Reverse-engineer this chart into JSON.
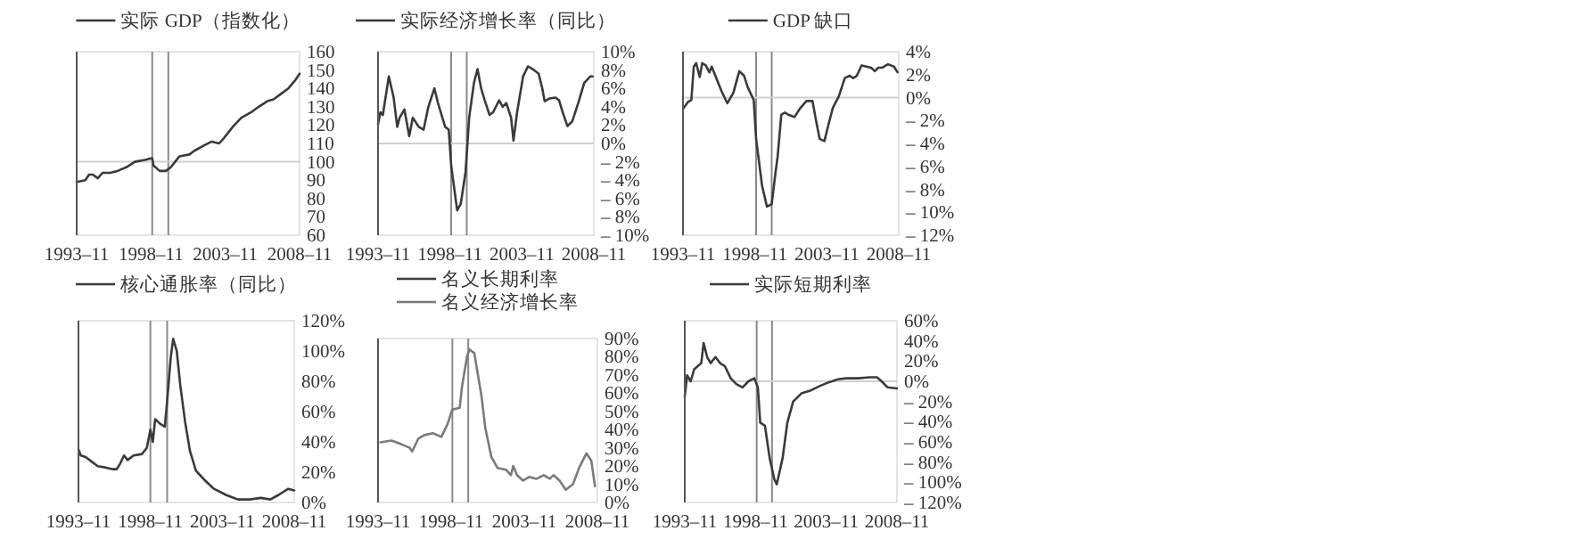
{
  "chart_data": [
    {
      "type": "line",
      "legend": "top",
      "xlim": [
        "1993-11",
        "2008-11"
      ],
      "xticks": [
        {
          "value": "1993-11",
          "label": "1993–11"
        },
        {
          "value": "1998-11",
          "label": "1998–11"
        },
        {
          "value": "2003-11",
          "label": "2003–11"
        },
        {
          "value": "2008-11",
          "label": "2008–11"
        }
      ],
      "ylim": [
        60,
        160
      ],
      "yticks": [
        60,
        70,
        80,
        90,
        100,
        110,
        120,
        130,
        140,
        150,
        160
      ],
      "ref_lines": [
        {
          "axis": "x",
          "value": "1998-12",
          "color": "#8a8a8a"
        },
        {
          "axis": "x",
          "value": "2000-01",
          "color": "#8a8a8a"
        },
        {
          "axis": "y",
          "value": 100,
          "color": "#d0d0d0"
        }
      ],
      "series": [
        {
          "name": "实际 GDP（指数化）",
          "color": "#3a3a3a",
          "x": [
            "1993-11",
            "1994-06",
            "1994-09",
            "1994-12",
            "1995-04",
            "1995-08",
            "1996-02",
            "1996-08",
            "1997-03",
            "1997-10",
            "1998-06",
            "1998-12",
            "1999-01",
            "1999-06",
            "1999-11",
            "2000-03",
            "2000-10",
            "2001-06",
            "2001-10",
            "2002-06",
            "2002-12",
            "2003-06",
            "2003-10",
            "2004-05",
            "2004-12",
            "2005-08",
            "2006-02",
            "2006-09",
            "2007-02",
            "2007-08",
            "2008-02",
            "2008-07",
            "2008-11"
          ],
          "values": [
            89,
            90,
            93,
            93,
            91,
            94,
            94,
            95,
            97,
            100,
            101,
            102,
            98,
            95,
            95,
            97,
            103,
            104,
            106,
            109,
            111,
            110,
            113,
            119,
            124,
            127,
            130,
            133,
            134,
            137,
            140,
            144,
            148
          ]
        }
      ]
    },
    {
      "type": "line",
      "legend": "top",
      "xlim": [
        "1993-11",
        "2008-11"
      ],
      "xticks": [
        {
          "value": "1993-11",
          "label": "1993–11"
        },
        {
          "value": "1998-11",
          "label": "1998–11"
        },
        {
          "value": "2003-11",
          "label": "2003–11"
        },
        {
          "value": "2008-11",
          "label": "2008–11"
        }
      ],
      "ylim": [
        -10,
        10
      ],
      "yticks": [
        {
          "value": -10,
          "label": "– 10%"
        },
        {
          "value": -8,
          "label": "– 8%"
        },
        {
          "value": -6,
          "label": "– 6%"
        },
        {
          "value": -4,
          "label": "– 4%"
        },
        {
          "value": -2,
          "label": "– 2%"
        },
        {
          "value": 0,
          "label": "0%"
        },
        {
          "value": 2,
          "label": "2%"
        },
        {
          "value": 4,
          "label": "4%"
        },
        {
          "value": 6,
          "label": "6%"
        },
        {
          "value": 8,
          "label": "8%"
        },
        {
          "value": 10,
          "label": "10%"
        }
      ],
      "ref_lines": [
        {
          "axis": "x",
          "value": "1998-12",
          "color": "#8a8a8a"
        },
        {
          "axis": "x",
          "value": "2000-01",
          "color": "#8a8a8a"
        },
        {
          "axis": "y",
          "value": 0,
          "color": "#d0d0d0"
        }
      ],
      "series": [
        {
          "name": "实际经济增长率（同比）",
          "color": "#3a3a3a",
          "x": [
            "1993-11",
            "1994-01",
            "1994-03",
            "1994-08",
            "1994-12",
            "1995-03",
            "1995-05",
            "1995-09",
            "1996-01",
            "1996-04",
            "1996-09",
            "1997-01",
            "1997-05",
            "1997-10",
            "1998-01",
            "1998-04",
            "1998-07",
            "1998-10",
            "1998-12",
            "1999-05",
            "1999-08",
            "1999-12",
            "2000-03",
            "2000-07",
            "2000-10",
            "2001-01",
            "2001-04",
            "2001-08",
            "2001-11",
            "2002-04",
            "2002-07",
            "2002-10",
            "2003-02",
            "2003-04",
            "2003-07",
            "2003-12",
            "2004-04",
            "2004-08",
            "2005-01",
            "2005-04",
            "2005-06",
            "2005-10",
            "2006-03",
            "2006-06",
            "2006-09",
            "2007-01",
            "2007-05",
            "2007-10",
            "2008-03",
            "2008-08",
            "2008-10"
          ],
          "values": [
            2.1,
            3.4,
            3.1,
            7.3,
            5,
            1.8,
            2.8,
            3.7,
            0.8,
            2.8,
            1.8,
            1.5,
            4,
            6,
            4.4,
            3.1,
            1.8,
            1.5,
            -2.4,
            -7.3,
            -6.6,
            -3.1,
            2.8,
            6.6,
            8.1,
            6,
            4.7,
            3.1,
            3.4,
            4.7,
            4,
            4.4,
            2.8,
            0.3,
            3.4,
            7.3,
            8.4,
            8.1,
            7.6,
            6,
            4.6,
            4.9,
            5,
            4.7,
            3.4,
            1.9,
            2.4,
            4.4,
            6.6,
            7.3,
            7.3
          ]
        }
      ]
    },
    {
      "type": "line",
      "legend": "top",
      "xlim": [
        "1993-11",
        "2008-11"
      ],
      "xticks": [
        {
          "value": "1993-11",
          "label": "1993–11"
        },
        {
          "value": "1998-11",
          "label": "1998–11"
        },
        {
          "value": "2003-11",
          "label": "2003–11"
        },
        {
          "value": "2008-11",
          "label": "2008–11"
        }
      ],
      "ylim": [
        -12,
        4
      ],
      "yticks": [
        {
          "value": -12,
          "label": "– 12%"
        },
        {
          "value": -10,
          "label": "– 10%"
        },
        {
          "value": -8,
          "label": "– 8%"
        },
        {
          "value": -6,
          "label": "– 6%"
        },
        {
          "value": -4,
          "label": "– 4%"
        },
        {
          "value": -2,
          "label": "– 2%"
        },
        {
          "value": 0,
          "label": "0%"
        },
        {
          "value": 2,
          "label": "2%"
        },
        {
          "value": 4,
          "label": "4%"
        }
      ],
      "ref_lines": [
        {
          "axis": "x",
          "value": "1998-12",
          "color": "#8a8a8a"
        },
        {
          "axis": "x",
          "value": "2000-01",
          "color": "#8a8a8a"
        },
        {
          "axis": "y",
          "value": 0,
          "color": "#d0d0d0"
        }
      ],
      "series": [
        {
          "name": "GDP 缺口",
          "color": "#3a3a3a",
          "x": [
            "1993-11",
            "1994-03",
            "1994-06",
            "1994-08",
            "1994-10",
            "1995-01",
            "1995-03",
            "1995-06",
            "1995-09",
            "1995-11",
            "1996-02",
            "1996-07",
            "1996-12",
            "1997-05",
            "1997-10",
            "1998-02",
            "1998-05",
            "1998-10",
            "1998-12",
            "1999-05",
            "1999-09",
            "2000-01",
            "2000-04",
            "2000-06",
            "2000-09",
            "2000-12",
            "2001-03",
            "2001-08",
            "2002-01",
            "2002-06",
            "2002-11",
            "2003-02",
            "2003-05",
            "2003-09",
            "2003-12",
            "2004-04",
            "2004-09",
            "2005-02",
            "2005-06",
            "2005-09",
            "2005-12",
            "2006-04",
            "2006-08",
            "2006-12",
            "2007-03",
            "2007-06",
            "2007-09",
            "2008-02",
            "2008-07",
            "2008-10"
          ],
          "values": [
            -1,
            -0.4,
            -0.2,
            2.7,
            3,
            1.8,
            3,
            2.8,
            2.2,
            2.7,
            1.9,
            0.6,
            -0.5,
            0.4,
            2.3,
            1.9,
            0.9,
            -0.2,
            -3.6,
            -7.7,
            -9.5,
            -9.3,
            -6.7,
            -5.1,
            -1.5,
            -1.3,
            -1.5,
            -1.7,
            -0.9,
            -0.3,
            -0.3,
            -2,
            -3.6,
            -3.8,
            -2.5,
            -0.9,
            0.1,
            1.7,
            1.9,
            1.7,
            1.9,
            2.8,
            2.7,
            2.6,
            2.3,
            2.6,
            2.6,
            2.9,
            2.7,
            2.2
          ]
        }
      ]
    },
    {
      "type": "line",
      "legend": "top",
      "xlim": [
        "1993-11",
        "2008-11"
      ],
      "xticks": [
        {
          "value": "1993-11",
          "label": "1993–11"
        },
        {
          "value": "1998-11",
          "label": "1998–11"
        },
        {
          "value": "2003-11",
          "label": "2003–11"
        },
        {
          "value": "2008-11",
          "label": "2008–11"
        }
      ],
      "ylim": [
        0,
        120
      ],
      "yticks": [
        {
          "value": 0,
          "label": "0%"
        },
        {
          "value": 20,
          "label": "20%"
        },
        {
          "value": 40,
          "label": "40%"
        },
        {
          "value": 60,
          "label": "60%"
        },
        {
          "value": 80,
          "label": "80%"
        },
        {
          "value": 100,
          "label": "100%"
        },
        {
          "value": 120,
          "label": "120%"
        }
      ],
      "ref_lines": [
        {
          "axis": "x",
          "value": "1998-11",
          "color": "#8a8a8a"
        },
        {
          "axis": "x",
          "value": "2000-01",
          "color": "#8a8a8a"
        }
      ],
      "series": [
        {
          "name": "核心通胀率（同比）",
          "color": "#3a3a3a",
          "x": [
            "1993-11",
            "1994-01",
            "1994-05",
            "1994-10",
            "1995-03",
            "1995-10",
            "1996-03",
            "1996-07",
            "1996-10",
            "1997-01",
            "1997-04",
            "1997-09",
            "1998-04",
            "1998-08",
            "1998-11",
            "1999-01",
            "1999-03",
            "1999-07",
            "1999-11",
            "2000-01",
            "2000-04",
            "2000-06",
            "2000-09",
            "2000-12",
            "2001-04",
            "2001-08",
            "2002-01",
            "2002-08",
            "2003-04",
            "2004-02",
            "2004-12",
            "2005-10",
            "2006-07",
            "2007-03",
            "2007-10",
            "2008-06",
            "2008-11"
          ],
          "values": [
            35,
            31,
            30,
            27,
            24,
            23,
            22,
            22,
            26,
            31,
            28,
            31,
            32,
            36,
            48,
            40,
            55,
            52,
            50,
            67,
            96,
            108,
            100,
            77,
            53,
            34,
            21,
            15,
            9,
            5,
            2,
            2,
            3,
            2,
            5,
            9,
            8
          ]
        }
      ]
    },
    {
      "type": "line",
      "legend": "top",
      "xlim": [
        "1993-11",
        "2008-11"
      ],
      "xticks": [
        {
          "value": "1993-11",
          "label": "1993–11"
        },
        {
          "value": "1998-11",
          "label": "1998–11"
        },
        {
          "value": "2003-11",
          "label": "2003–11"
        },
        {
          "value": "2008-11",
          "label": "2008–11"
        }
      ],
      "ylim": [
        0,
        90
      ],
      "yticks": [
        {
          "value": 0,
          "label": "0%"
        },
        {
          "value": 10,
          "label": "10%"
        },
        {
          "value": 20,
          "label": "20%"
        },
        {
          "value": 30,
          "label": "30%"
        },
        {
          "value": 40,
          "label": "40%"
        },
        {
          "value": 50,
          "label": "50%"
        },
        {
          "value": 60,
          "label": "60%"
        },
        {
          "value": 70,
          "label": "70%"
        },
        {
          "value": 80,
          "label": "80%"
        },
        {
          "value": 90,
          "label": "90%"
        }
      ],
      "ref_lines": [
        {
          "axis": "x",
          "value": "1998-12",
          "color": "#8a8a8a"
        },
        {
          "axis": "x",
          "value": "2000-01",
          "color": "#8a8a8a"
        }
      ],
      "series": [
        {
          "name": "名义长期利率",
          "color": "#3a3a3a",
          "values": [
            null
          ]
        },
        {
          "name": "名义经济增长率",
          "color": "#7a7a7a",
          "x": [
            "1994-01",
            "1994-10",
            "1995-06",
            "1996-01",
            "1996-03",
            "1996-08",
            "1997-01",
            "1997-08",
            "1998-03",
            "1998-08",
            "1998-12",
            "1999-06",
            "1999-08",
            "1999-12",
            "2000-02",
            "2000-06",
            "2000-08",
            "2000-12",
            "2001-03",
            "2001-08",
            "2002-01",
            "2002-08",
            "2002-12",
            "2003-02",
            "2003-05",
            "2003-10",
            "2004-03",
            "2004-09",
            "2005-03",
            "2005-08",
            "2005-11",
            "2006-04",
            "2006-09",
            "2007-03",
            "2007-08",
            "2008-02",
            "2008-06",
            "2008-09"
          ],
          "values": [
            33,
            34,
            32,
            30,
            28,
            35,
            37,
            38,
            36,
            43,
            51,
            52,
            64,
            80,
            84,
            82,
            74,
            58,
            41,
            25,
            19,
            18,
            15,
            20,
            15,
            12,
            14,
            13,
            15,
            13,
            15,
            12,
            7,
            10,
            19,
            27,
            23,
            9
          ]
        }
      ]
    },
    {
      "type": "line",
      "legend": "top",
      "xlim": [
        "1993-11",
        "2008-11"
      ],
      "xticks": [
        {
          "value": "1993-11",
          "label": "1993–11"
        },
        {
          "value": "1998-11",
          "label": "1998–11"
        },
        {
          "value": "2003-11",
          "label": "2003–11"
        },
        {
          "value": "2008-11",
          "label": "2008–11"
        }
      ],
      "ylim": [
        -120,
        60
      ],
      "yticks": [
        {
          "value": -120,
          "label": "– 120%"
        },
        {
          "value": -100,
          "label": "– 100%"
        },
        {
          "value": -80,
          "label": "– 80%"
        },
        {
          "value": -60,
          "label": "– 60%"
        },
        {
          "value": -40,
          "label": "– 40%"
        },
        {
          "value": -20,
          "label": "– 20%"
        },
        {
          "value": 0,
          "label": "0%"
        },
        {
          "value": 20,
          "label": "20%"
        },
        {
          "value": 40,
          "label": "40%"
        },
        {
          "value": 60,
          "label": "60%"
        }
      ],
      "ref_lines": [
        {
          "axis": "x",
          "value": "1998-12",
          "color": "#8a8a8a"
        },
        {
          "axis": "x",
          "value": "2000-01",
          "color": "#8a8a8a"
        },
        {
          "axis": "y",
          "value": 0,
          "color": "#d0d0d0"
        }
      ],
      "series": [
        {
          "name": "实际短期利率",
          "color": "#3a3a3a",
          "x": [
            "1993-11",
            "1994-01",
            "1994-04",
            "1994-07",
            "1995-01",
            "1995-03",
            "1995-06",
            "1995-09",
            "1996-01",
            "1996-05",
            "1996-09",
            "1997-02",
            "1997-07",
            "1997-12",
            "1998-05",
            "1998-10",
            "1999-01",
            "1999-03",
            "1999-07",
            "1999-11",
            "2000-03",
            "2000-05",
            "2000-06",
            "2000-10",
            "2001-02",
            "2001-07",
            "2002-02",
            "2002-10",
            "2003-05",
            "2004-01",
            "2004-09",
            "2005-04",
            "2006-02",
            "2006-12",
            "2007-06",
            "2007-10",
            "2008-03",
            "2008-11"
          ],
          "values": [
            -15,
            6,
            0,
            12,
            18,
            38,
            24,
            18,
            24,
            18,
            15,
            3,
            -3,
            -6,
            0,
            3,
            -6,
            -41,
            -44,
            -76,
            -97,
            -102,
            -97,
            -76,
            -41,
            -20,
            -12,
            -9,
            -5,
            -1,
            2,
            3,
            3,
            4,
            4,
            0,
            -6,
            -7
          ]
        }
      ]
    }
  ]
}
